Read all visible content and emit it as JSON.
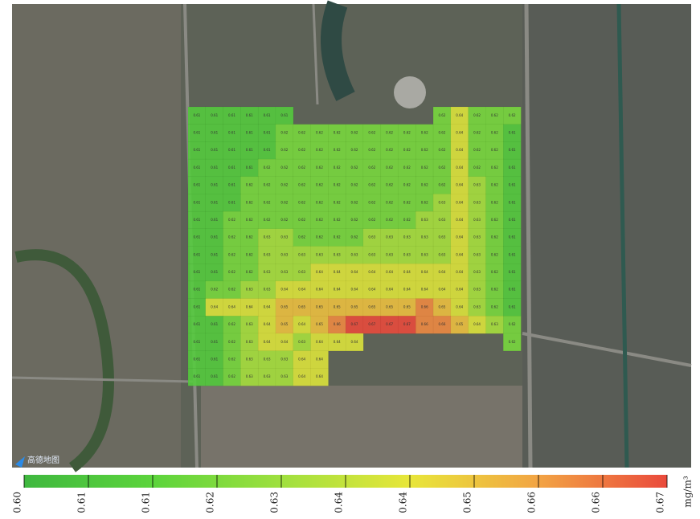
{
  "chart_data": {
    "type": "heatmap",
    "unit": "mg/m³",
    "logo": "高德地图",
    "colors": [
      "#3fb83f",
      "#5cd43c",
      "#9fe03e",
      "#e8e63a",
      "#f2a444",
      "#ea4a3c"
    ],
    "clim": [
      0.6,
      0.67
    ],
    "cticks": [
      {
        "value": 0.6,
        "label": "0.60"
      },
      {
        "value": 0.607,
        "label": "0.61"
      },
      {
        "value": 0.614,
        "label": "0.61"
      },
      {
        "value": 0.621,
        "label": "0.62"
      },
      {
        "value": 0.628,
        "label": "0.63"
      },
      {
        "value": 0.635,
        "label": "0.64"
      },
      {
        "value": 0.642,
        "label": "0.64"
      },
      {
        "value": 0.649,
        "label": "0.65"
      },
      {
        "value": 0.656,
        "label": "0.66"
      },
      {
        "value": 0.663,
        "label": "0.66"
      },
      {
        "value": 0.67,
        "label": "0.67"
      }
    ],
    "values": [
      [
        0.61,
        0.61,
        0.61,
        0.61,
        0.61,
        0.61,
        null,
        null,
        null,
        null,
        null,
        null,
        null,
        null,
        0.62,
        0.64,
        0.62,
        0.62,
        0.62
      ],
      [
        0.61,
        0.61,
        0.61,
        0.61,
        0.61,
        0.62,
        0.62,
        0.62,
        0.62,
        0.62,
        0.62,
        0.62,
        0.62,
        0.62,
        0.62,
        0.64,
        0.62,
        0.62,
        0.61
      ],
      [
        0.61,
        0.61,
        0.61,
        0.61,
        0.61,
        0.62,
        0.62,
        0.62,
        0.62,
        0.62,
        0.62,
        0.62,
        0.62,
        0.62,
        0.62,
        0.64,
        0.62,
        0.62,
        0.61
      ],
      [
        0.61,
        0.61,
        0.61,
        0.61,
        0.62,
        0.62,
        0.62,
        0.62,
        0.62,
        0.62,
        0.62,
        0.62,
        0.62,
        0.62,
        0.62,
        0.64,
        0.62,
        0.62,
        0.61
      ],
      [
        0.61,
        0.61,
        0.61,
        0.62,
        0.62,
        0.62,
        0.62,
        0.62,
        0.62,
        0.62,
        0.62,
        0.62,
        0.62,
        0.62,
        0.62,
        0.64,
        0.63,
        0.62,
        0.61
      ],
      [
        0.61,
        0.61,
        0.61,
        0.62,
        0.62,
        0.62,
        0.62,
        0.62,
        0.62,
        0.62,
        0.62,
        0.62,
        0.62,
        0.62,
        0.63,
        0.64,
        0.63,
        0.62,
        0.61
      ],
      [
        0.61,
        0.61,
        0.62,
        0.62,
        0.62,
        0.62,
        0.62,
        0.62,
        0.62,
        0.62,
        0.62,
        0.62,
        0.62,
        0.63,
        0.63,
        0.64,
        0.63,
        0.62,
        0.61
      ],
      [
        0.61,
        0.61,
        0.62,
        0.62,
        0.63,
        0.63,
        0.62,
        0.62,
        0.62,
        0.62,
        0.63,
        0.63,
        0.63,
        0.63,
        0.63,
        0.64,
        0.63,
        0.62,
        0.61
      ],
      [
        0.61,
        0.61,
        0.62,
        0.62,
        0.63,
        0.63,
        0.63,
        0.63,
        0.63,
        0.63,
        0.63,
        0.63,
        0.63,
        0.63,
        0.63,
        0.64,
        0.63,
        0.62,
        0.61
      ],
      [
        0.61,
        0.61,
        0.62,
        0.62,
        0.63,
        0.63,
        0.63,
        0.64,
        0.64,
        0.64,
        0.64,
        0.64,
        0.64,
        0.64,
        0.64,
        0.64,
        0.63,
        0.62,
        0.61
      ],
      [
        0.61,
        0.62,
        0.62,
        0.63,
        0.63,
        0.64,
        0.64,
        0.64,
        0.64,
        0.64,
        0.64,
        0.64,
        0.64,
        0.64,
        0.64,
        0.64,
        0.63,
        0.62,
        0.61
      ],
      [
        0.61,
        0.64,
        0.64,
        0.64,
        0.64,
        0.65,
        0.65,
        0.65,
        0.65,
        0.65,
        0.65,
        0.65,
        0.65,
        0.66,
        0.65,
        0.64,
        0.63,
        0.62,
        0.61
      ],
      [
        0.61,
        0.61,
        0.62,
        0.63,
        0.64,
        0.65,
        0.64,
        0.65,
        0.66,
        0.67,
        0.67,
        0.67,
        0.67,
        0.66,
        0.66,
        0.65,
        0.64,
        0.63,
        0.62
      ],
      [
        0.61,
        0.61,
        0.62,
        0.63,
        0.64,
        0.64,
        0.63,
        0.64,
        0.64,
        0.64,
        null,
        null,
        null,
        null,
        null,
        null,
        null,
        null,
        0.62
      ],
      [
        0.61,
        0.61,
        0.62,
        0.63,
        0.63,
        0.63,
        0.64,
        0.64,
        null,
        null,
        null,
        null,
        null,
        null,
        null,
        null,
        null,
        null,
        null
      ],
      [
        0.61,
        0.61,
        0.62,
        0.63,
        0.63,
        0.63,
        0.64,
        0.64,
        null,
        null,
        null,
        null,
        null,
        null,
        null,
        null,
        null,
        null,
        null
      ]
    ]
  }
}
